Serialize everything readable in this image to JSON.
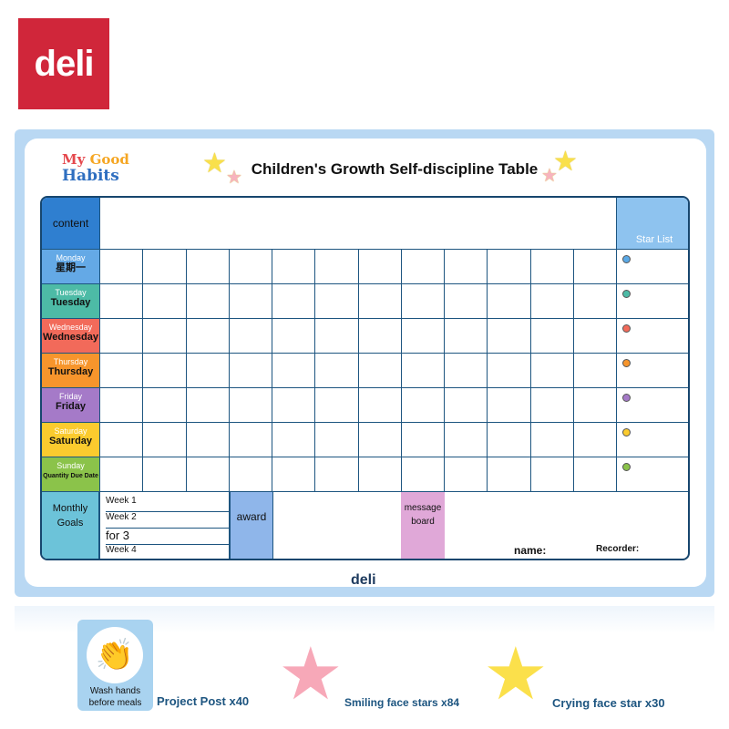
{
  "brand": {
    "logo": "deli",
    "board_logo": "deli"
  },
  "header": {
    "habits_line1a": "My",
    "habits_line1b": "Good",
    "habits_line2": "Habits",
    "title": "Children's Growth Self-discipline Table"
  },
  "table": {
    "content_label": "content",
    "star_list_label": "Star List",
    "columns": 12,
    "days": [
      {
        "top": "Monday",
        "bottom": "星期一",
        "color": "#64a9e6"
      },
      {
        "top": "Tuesday",
        "bottom": "Tuesday",
        "color": "#4dbba6"
      },
      {
        "top": "Wednesday",
        "bottom": "Wednesday",
        "color": "#f26a5a"
      },
      {
        "top": "Thursday",
        "bottom": "Thursday",
        "color": "#f7952c"
      },
      {
        "top": "Friday",
        "bottom": "Friday",
        "color": "#a57ac8"
      },
      {
        "top": "Saturday",
        "bottom": "Saturday",
        "color": "#fbcb2e"
      },
      {
        "top": "Sunday",
        "bottom": "Quantity Due Date",
        "color": "#8bc34a"
      }
    ],
    "dot_colors": [
      "#5aa9e6",
      "#4dbba6",
      "#f26a5a",
      "#f7952c",
      "#a57ac8",
      "#fbcb2e",
      "#8bc34a"
    ],
    "monthly_goals": "Monthly Goals",
    "weeks": [
      "Week 1",
      "Week 2",
      "for 3",
      "Week 4"
    ],
    "award": "award",
    "message_board": "message board",
    "name": "name:",
    "recorder": "Recorder:"
  },
  "accessories": [
    {
      "image_text": "Wash hands before meals",
      "caption": "Project Post x40"
    },
    {
      "caption": "Smiling face stars x84",
      "face": "smile",
      "color": "#f7a8b8"
    },
    {
      "caption": "Crying face star x30",
      "face": "cry",
      "color": "#fbe04b"
    }
  ]
}
